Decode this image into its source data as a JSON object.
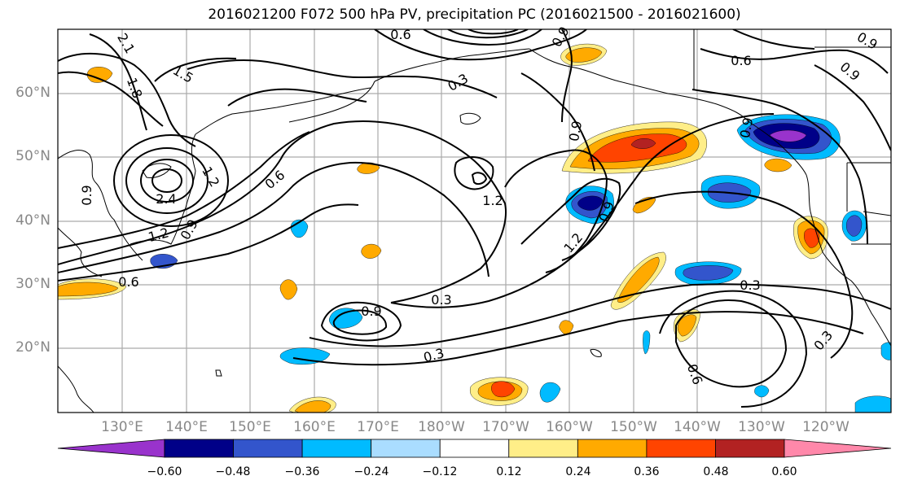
{
  "title": "2016021200 F072 500 hPa PV, precipitation PC (2016021500 - 2016021600)",
  "latitude_labels": [
    "60°N",
    "50°N",
    "40°N",
    "30°N",
    "20°N"
  ],
  "longitude_labels": [
    "130°E",
    "140°E",
    "150°E",
    "160°E",
    "170°E",
    "180°W",
    "170°W",
    "160°W",
    "150°W",
    "140°W",
    "130°W",
    "120°W"
  ],
  "contour_labels": [
    "2.1",
    "1.5",
    "1.8",
    "0.3",
    "0.6",
    "0.9",
    "0.9",
    "0.6",
    "0.9",
    "1.2",
    "2.4",
    "1.2",
    "0.9",
    "0.9",
    "0.6",
    "0.6",
    "0.3",
    "0.9",
    "1.2",
    "0.9",
    "1.2",
    "0.9",
    "0.3",
    "0.3",
    "0.6",
    "0.3",
    "0.9"
  ],
  "colorbar": {
    "colors": [
      "#9933cc",
      "#000088",
      "#3355cc",
      "#00bbff",
      "#aaddff",
      "#ffffff",
      "#ffee88",
      "#ffaa00",
      "#ff4400",
      "#b22222",
      "#ff88aa"
    ],
    "ticks": [
      "−0.60",
      "−0.48",
      "−0.36",
      "−0.24",
      "−0.12",
      "0.12",
      "0.24",
      "0.36",
      "0.48",
      "0.60"
    ]
  }
}
